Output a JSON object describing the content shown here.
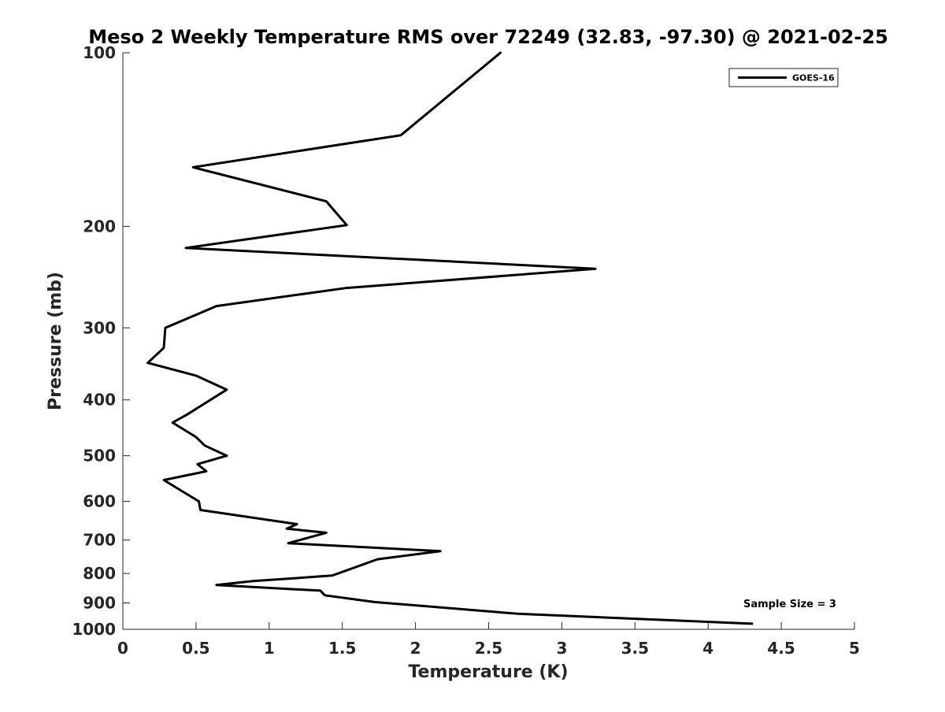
{
  "chart_data": {
    "type": "line",
    "title": "Meso 2 Weekly Temperature RMS over 72249 (32.83, -97.30) @ 2021-02-25",
    "xlabel": "Temperature (K)",
    "ylabel": "Pressure (mb)",
    "xlim": [
      0,
      5
    ],
    "ylim": [
      100,
      1000
    ],
    "y_scale": "log",
    "y_reversed": true,
    "grid": false,
    "legend_position": "top-right",
    "x_ticks": [
      0,
      0.5,
      1,
      1.5,
      2,
      2.5,
      3,
      3.5,
      4,
      4.5,
      5
    ],
    "x_tick_labels": [
      "0",
      "0.5",
      "1",
      "1.5",
      "2",
      "2.5",
      "3",
      "3.5",
      "4",
      "4.5",
      "5"
    ],
    "y_ticks": [
      100,
      200,
      300,
      400,
      500,
      600,
      700,
      800,
      900,
      1000
    ],
    "y_tick_labels": [
      "100",
      "200",
      "300",
      "400",
      "500",
      "600",
      "700",
      "800",
      "900",
      "1000"
    ],
    "annotation": "Sample Size = 3",
    "series": [
      {
        "name": "GOES-16",
        "color": "#000000",
        "points": [
          [
            2.58,
            100
          ],
          [
            1.9,
            139
          ],
          [
            0.48,
            158
          ],
          [
            1.39,
            181
          ],
          [
            1.53,
            199
          ],
          [
            0.43,
            218
          ],
          [
            3.23,
            237
          ],
          [
            1.52,
            256
          ],
          [
            0.64,
            275
          ],
          [
            0.29,
            300
          ],
          [
            0.28,
            325
          ],
          [
            0.17,
            345
          ],
          [
            0.5,
            363
          ],
          [
            0.71,
            384
          ],
          [
            0.44,
            424
          ],
          [
            0.34,
            438
          ],
          [
            0.5,
            464
          ],
          [
            0.56,
            480
          ],
          [
            0.71,
            500
          ],
          [
            0.51,
            517
          ],
          [
            0.57,
            532
          ],
          [
            0.28,
            551
          ],
          [
            0.52,
            600
          ],
          [
            0.53,
            621
          ],
          [
            1.19,
            657
          ],
          [
            1.12,
            669
          ],
          [
            1.39,
            680
          ],
          [
            1.13,
            709
          ],
          [
            2.17,
            732
          ],
          [
            1.74,
            756
          ],
          [
            1.43,
            807
          ],
          [
            0.89,
            825
          ],
          [
            0.64,
            838
          ],
          [
            1.35,
            857
          ],
          [
            1.38,
            873
          ],
          [
            1.72,
            897
          ],
          [
            2.7,
            940
          ],
          [
            4.3,
            978
          ]
        ]
      }
    ]
  }
}
